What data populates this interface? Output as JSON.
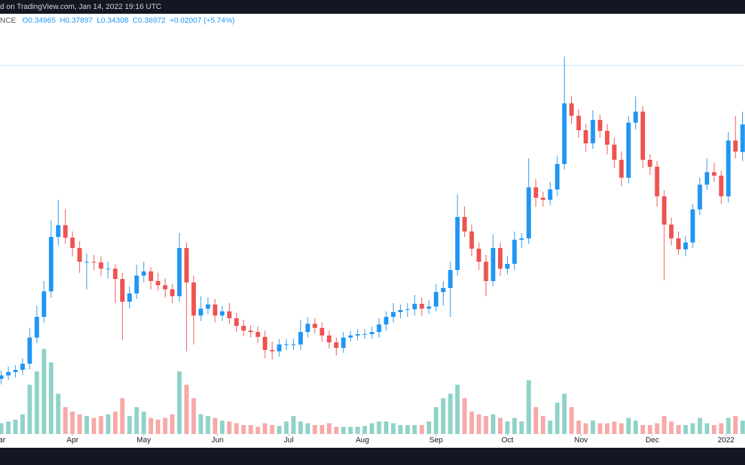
{
  "chart_data": {
    "type": "candlestick",
    "title": "d on TradingView.com, Jan 14, 2022 19:16 UTC",
    "symbol": "NCE",
    "readout": [
      "O0.34965",
      "H0.37897",
      "L0.34308",
      "C0.36972",
      "+0.02007 (+5.74%)"
    ],
    "up_color": "#2196f3",
    "down_color": "#ef5350",
    "volume_up_color": "#8fd3c8",
    "volume_down_color": "#f7a9a7",
    "price_line": 0.4125,
    "xlim": [
      0.5,
      314
    ],
    "ylim": [
      0.18,
      0.45
    ],
    "vlim": [
      0,
      100
    ],
    "xticks": [
      {
        "value": 0,
        "label": "Mar"
      },
      {
        "value": 31,
        "label": "Apr"
      },
      {
        "value": 61,
        "label": "May"
      },
      {
        "value": 92,
        "label": "Jun"
      },
      {
        "value": 122,
        "label": "Jul"
      },
      {
        "value": 153,
        "label": "Aug"
      },
      {
        "value": 184,
        "label": "Sep"
      },
      {
        "value": 214,
        "label": "Oct"
      },
      {
        "value": 245,
        "label": "Nov"
      },
      {
        "value": 275,
        "label": "Dec"
      },
      {
        "value": 306,
        "label": "2022"
      }
    ],
    "x": [
      1,
      4,
      7,
      10,
      13,
      16,
      19,
      22,
      25,
      28,
      31,
      34,
      37,
      40,
      43,
      46,
      49,
      52,
      55,
      58,
      61,
      64,
      67,
      70,
      73,
      76,
      79,
      82,
      85,
      88,
      91,
      94,
      97,
      100,
      103,
      106,
      109,
      112,
      115,
      118,
      121,
      124,
      127,
      130,
      133,
      136,
      139,
      142,
      145,
      148,
      151,
      154,
      157,
      160,
      163,
      166,
      169,
      172,
      175,
      178,
      181,
      184,
      187,
      190,
      193,
      196,
      199,
      202,
      205,
      208,
      211,
      214,
      217,
      220,
      223,
      226,
      229,
      232,
      235,
      238,
      241,
      244,
      247,
      250,
      253,
      256,
      259,
      262,
      265,
      268,
      271,
      274,
      277,
      280,
      283,
      286,
      289,
      292,
      295,
      298,
      301,
      304,
      307,
      310,
      313
    ],
    "ohlc": [
      [
        0.185,
        0.191,
        0.181,
        0.1875
      ],
      [
        0.1875,
        0.194,
        0.184,
        0.19
      ],
      [
        0.19,
        0.195,
        0.186,
        0.1915
      ],
      [
        0.1915,
        0.2,
        0.188,
        0.196
      ],
      [
        0.196,
        0.222,
        0.192,
        0.215
      ],
      [
        0.215,
        0.238,
        0.211,
        0.23
      ],
      [
        0.23,
        0.256,
        0.226,
        0.2485
      ],
      [
        0.2485,
        0.3,
        0.244,
        0.288
      ],
      [
        0.288,
        0.315,
        0.282,
        0.2965
      ],
      [
        0.2965,
        0.308,
        0.283,
        0.2875
      ],
      [
        0.2875,
        0.292,
        0.274,
        0.28
      ],
      [
        0.28,
        0.285,
        0.262,
        0.27
      ],
      [
        0.27,
        0.276,
        0.25,
        0.27
      ],
      [
        0.27,
        0.275,
        0.264,
        0.2695
      ],
      [
        0.2695,
        0.274,
        0.26,
        0.265
      ],
      [
        0.265,
        0.27,
        0.258,
        0.265
      ],
      [
        0.265,
        0.268,
        0.24,
        0.2575
      ],
      [
        0.2575,
        0.262,
        0.2135,
        0.241
      ],
      [
        0.241,
        0.252,
        0.236,
        0.247
      ],
      [
        0.247,
        0.268,
        0.243,
        0.26
      ],
      [
        0.26,
        0.27,
        0.255,
        0.263
      ],
      [
        0.263,
        0.266,
        0.25,
        0.256
      ],
      [
        0.256,
        0.262,
        0.249,
        0.253
      ],
      [
        0.253,
        0.258,
        0.244,
        0.25
      ],
      [
        0.25,
        0.254,
        0.24,
        0.245
      ],
      [
        0.245,
        0.291,
        0.241,
        0.28
      ],
      [
        0.28,
        0.284,
        0.205,
        0.255
      ],
      [
        0.255,
        0.26,
        0.21,
        0.231
      ],
      [
        0.231,
        0.245,
        0.227,
        0.236
      ],
      [
        0.236,
        0.244,
        0.232,
        0.239
      ],
      [
        0.239,
        0.243,
        0.226,
        0.231
      ],
      [
        0.231,
        0.238,
        0.227,
        0.234
      ],
      [
        0.234,
        0.24,
        0.225,
        0.229
      ],
      [
        0.229,
        0.233,
        0.219,
        0.2235
      ],
      [
        0.2235,
        0.228,
        0.216,
        0.22
      ],
      [
        0.22,
        0.224,
        0.215,
        0.219
      ],
      [
        0.219,
        0.223,
        0.211,
        0.2155
      ],
      [
        0.2155,
        0.22,
        0.2,
        0.206
      ],
      [
        0.206,
        0.212,
        0.199,
        0.205
      ],
      [
        0.205,
        0.214,
        0.201,
        0.21
      ],
      [
        0.21,
        0.214,
        0.206,
        0.21
      ],
      [
        0.21,
        0.214,
        0.206,
        0.21
      ],
      [
        0.21,
        0.228,
        0.206,
        0.219
      ],
      [
        0.219,
        0.23,
        0.215,
        0.225
      ],
      [
        0.225,
        0.229,
        0.218,
        0.222
      ],
      [
        0.222,
        0.226,
        0.212,
        0.2165
      ],
      [
        0.2165,
        0.22,
        0.207,
        0.2115
      ],
      [
        0.2115,
        0.215,
        0.202,
        0.2075
      ],
      [
        0.2075,
        0.219,
        0.204,
        0.215
      ],
      [
        0.215,
        0.22,
        0.212,
        0.2165
      ],
      [
        0.2165,
        0.221,
        0.213,
        0.2175
      ],
      [
        0.2175,
        0.221,
        0.214,
        0.2175
      ],
      [
        0.2175,
        0.223,
        0.214,
        0.219
      ],
      [
        0.219,
        0.229,
        0.215,
        0.2245
      ],
      [
        0.2245,
        0.234,
        0.22,
        0.23
      ],
      [
        0.23,
        0.24,
        0.226,
        0.2335
      ],
      [
        0.2335,
        0.239,
        0.229,
        0.235
      ],
      [
        0.235,
        0.24,
        0.23,
        0.2355
      ],
      [
        0.2355,
        0.246,
        0.231,
        0.2395
      ],
      [
        0.2395,
        0.244,
        0.231,
        0.236
      ],
      [
        0.236,
        0.242,
        0.232,
        0.2375
      ],
      [
        0.2375,
        0.254,
        0.234,
        0.248
      ],
      [
        0.248,
        0.256,
        0.238,
        0.251
      ],
      [
        0.251,
        0.27,
        0.23,
        0.264
      ],
      [
        0.264,
        0.319,
        0.26,
        0.3025
      ],
      [
        0.3025,
        0.31,
        0.288,
        0.292
      ],
      [
        0.292,
        0.297,
        0.274,
        0.2795
      ],
      [
        0.2795,
        0.284,
        0.264,
        0.27
      ],
      [
        0.27,
        0.275,
        0.245,
        0.256
      ],
      [
        0.256,
        0.29,
        0.252,
        0.28
      ],
      [
        0.28,
        0.284,
        0.26,
        0.265
      ],
      [
        0.265,
        0.274,
        0.261,
        0.2685
      ],
      [
        0.2685,
        0.292,
        0.264,
        0.286
      ],
      [
        0.286,
        0.291,
        0.28,
        0.287
      ],
      [
        0.287,
        0.345,
        0.283,
        0.324
      ],
      [
        0.324,
        0.33,
        0.31,
        0.3165
      ],
      [
        0.3165,
        0.321,
        0.31,
        0.315
      ],
      [
        0.315,
        0.328,
        0.311,
        0.3225
      ],
      [
        0.3225,
        0.347,
        0.318,
        0.341
      ],
      [
        0.341,
        0.419,
        0.337,
        0.385
      ],
      [
        0.385,
        0.39,
        0.37,
        0.376
      ],
      [
        0.376,
        0.381,
        0.36,
        0.3655
      ],
      [
        0.3655,
        0.37,
        0.35,
        0.356
      ],
      [
        0.356,
        0.38,
        0.352,
        0.373
      ],
      [
        0.373,
        0.377,
        0.36,
        0.365
      ],
      [
        0.365,
        0.37,
        0.348,
        0.355
      ],
      [
        0.355,
        0.36,
        0.338,
        0.344
      ],
      [
        0.344,
        0.35,
        0.325,
        0.331
      ],
      [
        0.331,
        0.376,
        0.327,
        0.371
      ],
      [
        0.371,
        0.39,
        0.366,
        0.379
      ],
      [
        0.379,
        0.383,
        0.338,
        0.344
      ],
      [
        0.344,
        0.348,
        0.333,
        0.339
      ],
      [
        0.339,
        0.343,
        0.31,
        0.3175
      ],
      [
        0.3175,
        0.322,
        0.2565,
        0.297
      ],
      [
        0.297,
        0.302,
        0.282,
        0.287
      ],
      [
        0.287,
        0.292,
        0.275,
        0.279
      ],
      [
        0.279,
        0.289,
        0.274,
        0.284
      ],
      [
        0.284,
        0.312,
        0.28,
        0.308
      ],
      [
        0.308,
        0.331,
        0.304,
        0.326
      ],
      [
        0.326,
        0.345,
        0.322,
        0.335
      ],
      [
        0.335,
        0.342,
        0.328,
        0.3325
      ],
      [
        0.3325,
        0.336,
        0.312,
        0.3175
      ],
      [
        0.3175,
        0.364,
        0.313,
        0.358
      ],
      [
        0.358,
        0.376,
        0.345,
        0.35
      ],
      [
        0.34965,
        0.37897,
        0.34308,
        0.36972
      ]
    ],
    "volume": [
      12,
      14,
      16,
      22,
      55,
      70,
      95,
      80,
      45,
      30,
      25,
      22,
      20,
      18,
      20,
      22,
      25,
      40,
      20,
      30,
      25,
      18,
      16,
      18,
      22,
      70,
      55,
      40,
      22,
      20,
      18,
      15,
      14,
      12,
      10,
      10,
      8,
      12,
      10,
      9,
      14,
      20,
      14,
      12,
      10,
      10,
      12,
      8,
      8,
      8,
      8,
      9,
      12,
      14,
      14,
      12,
      10,
      10,
      10,
      10,
      14,
      30,
      40,
      45,
      55,
      40,
      25,
      22,
      20,
      22,
      18,
      14,
      18,
      14,
      60,
      30,
      20,
      15,
      35,
      45,
      30,
      15,
      12,
      15,
      12,
      12,
      14,
      12,
      18,
      15,
      10,
      10,
      12,
      20,
      14,
      10,
      10,
      12,
      18,
      12,
      10,
      12,
      18,
      20,
      15
    ]
  }
}
